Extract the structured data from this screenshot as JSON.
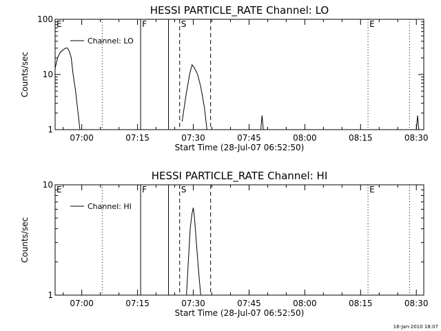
{
  "chart_data": [
    {
      "type": "line",
      "title": "HESSI PARTICLE_RATE Channel: LO",
      "xlabel": "Start Time (28-Jul-07 06:52:50)",
      "ylabel": "Counts/sec",
      "y_scale": "log",
      "ylim": [
        1,
        100
      ],
      "xlim": [
        "06:52:50",
        "08:32:00"
      ],
      "x_ticks": [
        "07:00",
        "07:15",
        "07:30",
        "07:45",
        "08:00",
        "08:15",
        "08:30"
      ],
      "y_ticks": [
        "1",
        "10",
        "100"
      ],
      "legend": {
        "label": "Channel: LO",
        "placement": "top-left"
      },
      "series": [
        {
          "x": [
            "06:52:50",
            "06:53:30",
            "06:54:10",
            "06:55:00",
            "06:55:40",
            "06:56:10",
            "06:56:40",
            "06:57:10",
            "06:57:40",
            "06:58:20",
            "06:59:00",
            "06:59:30",
            "07:27:00",
            "07:28:00",
            "07:29:00",
            "07:29:40",
            "07:30:20",
            "07:31:10",
            "07:32:00",
            "07:33:00",
            "07:33:40",
            "07:48:10",
            "07:48:30",
            "07:48:50",
            "08:30:00",
            "08:30:20",
            "08:30:40"
          ],
          "y": [
            13,
            20,
            25,
            28,
            30,
            30,
            26,
            20,
            10,
            5,
            2,
            1,
            1.4,
            4,
            10,
            15,
            13,
            10,
            6,
            2.5,
            1,
            1,
            1.8,
            1,
            1,
            1.8,
            1
          ]
        }
      ],
      "vertical_lines": [
        {
          "time": "07:05:30",
          "style": "dotted"
        },
        {
          "time": "07:15:50",
          "style": "solid"
        },
        {
          "time": "07:23:20",
          "style": "solid"
        },
        {
          "time": "07:26:20",
          "style": "dashed"
        },
        {
          "time": "07:34:40",
          "style": "dashed"
        },
        {
          "time": "08:17:00",
          "style": "dotted"
        },
        {
          "time": "08:28:10",
          "style": "dotted"
        }
      ],
      "annotations": [
        {
          "label": "E",
          "time": "06:52:50"
        },
        {
          "label": "F",
          "time": "07:15:50"
        },
        {
          "label": "S",
          "time": "07:26:20"
        },
        {
          "label": "E",
          "time": "08:17:00"
        }
      ]
    },
    {
      "type": "line",
      "title": "HESSI PARTICLE_RATE Channel: HI",
      "xlabel": "Start Time (28-Jul-07 06:52:50)",
      "ylabel": "Counts/sec",
      "y_scale": "log",
      "ylim": [
        1,
        10
      ],
      "xlim": [
        "06:52:50",
        "08:32:00"
      ],
      "x_ticks": [
        "07:00",
        "07:15",
        "07:30",
        "07:45",
        "08:00",
        "08:15",
        "08:30"
      ],
      "y_ticks": [
        "1",
        "10"
      ],
      "legend": {
        "label": "Channel: HI",
        "placement": "top-left"
      },
      "series": [
        {
          "x": [
            "07:28:10",
            "07:28:40",
            "07:29:10",
            "07:29:40",
            "07:30:00",
            "07:30:20",
            "07:30:50",
            "07:31:20",
            "07:32:00"
          ],
          "y": [
            1,
            2,
            4,
            5.5,
            6.2,
            5,
            3,
            1.8,
            1
          ]
        }
      ],
      "vertical_lines": [
        {
          "time": "07:05:30",
          "style": "dotted"
        },
        {
          "time": "07:15:50",
          "style": "solid"
        },
        {
          "time": "07:23:20",
          "style": "solid"
        },
        {
          "time": "07:26:20",
          "style": "dashed"
        },
        {
          "time": "07:34:40",
          "style": "dashed"
        },
        {
          "time": "08:17:00",
          "style": "dotted"
        },
        {
          "time": "08:28:10",
          "style": "dotted"
        }
      ],
      "annotations": [
        {
          "label": "E",
          "time": "06:52:50"
        },
        {
          "label": "F",
          "time": "07:15:50"
        },
        {
          "label": "S",
          "time": "07:26:20"
        },
        {
          "label": "E",
          "time": "08:17:00"
        }
      ]
    }
  ],
  "footer": {
    "timestamp": "16-Jan-2010 18:07"
  }
}
